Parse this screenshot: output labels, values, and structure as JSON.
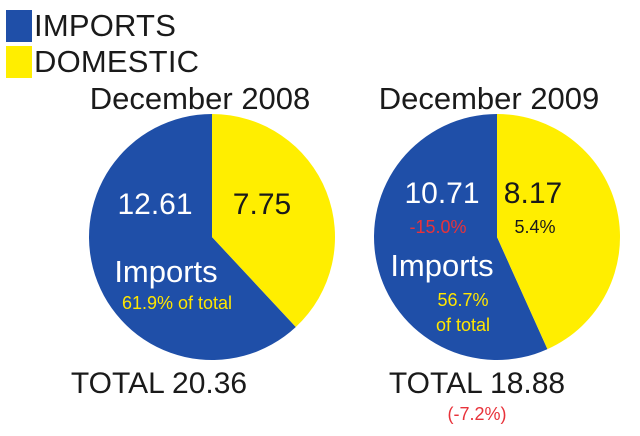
{
  "legend": {
    "imports_label": "IMPORTS",
    "domestic_label": "DOMESTIC",
    "imports_color": "#1f4fa8",
    "domestic_color": "#ffee00"
  },
  "chart_data": [
    {
      "type": "pie",
      "title": "December 2008",
      "categories": [
        "IMPORTS",
        "DOMESTIC"
      ],
      "values": [
        12.61,
        7.75
      ],
      "imports_value_label": "12.61",
      "domestic_value_label": "7.75",
      "imports_word": "Imports",
      "share_line1": "61.9% of total",
      "share_line2": "",
      "imports_change": "",
      "domestic_change": "",
      "total_label": "TOTAL 20.36",
      "total_change": ""
    },
    {
      "type": "pie",
      "title": "December 2009",
      "categories": [
        "IMPORTS",
        "DOMESTIC"
      ],
      "values": [
        10.71,
        8.17
      ],
      "imports_value_label": "10.71",
      "domestic_value_label": "8.17",
      "imports_word": "Imports",
      "share_line1": "56.7%",
      "share_line2": "of total",
      "imports_change": "-15.0%",
      "domestic_change": "5.4%",
      "total_label": "TOTAL 18.88",
      "total_change": "(-7.2%)"
    }
  ]
}
